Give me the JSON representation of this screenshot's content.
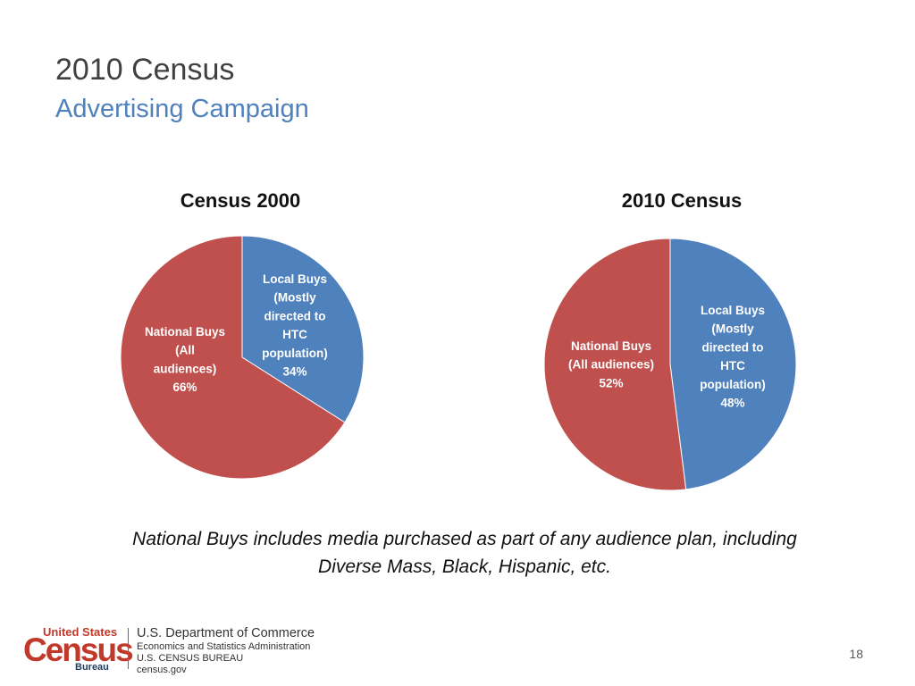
{
  "slide": {
    "title": "2010 Census",
    "subtitle": "Advertising Campaign",
    "footnote_line1": "National Buys includes media purchased as part of any audience plan, including",
    "footnote_line2": "Diverse Mass, Black, Hispanic, etc.",
    "page_number": "18"
  },
  "footer": {
    "logo_top": "United States",
    "logo_main": "Census",
    "logo_bottom": "Bureau",
    "dept_line1": "U.S. Department of Commerce",
    "dept_line2": "Economics and Statistics Administration",
    "dept_line3": "U.S. CENSUS BUREAU",
    "dept_line4": "census.gov"
  },
  "colors": {
    "local_buys": "#4f81bd",
    "national_buys": "#c0504d",
    "subtitle": "#4f81bd"
  },
  "chart_data": [
    {
      "type": "pie",
      "title": "Census 2000",
      "slices": [
        {
          "name": "Local Buys (Mostly directed to HTC population)",
          "value": 34,
          "label_lines": [
            "Local Buys",
            "(Mostly",
            "directed to",
            "HTC",
            "population)",
            "34%"
          ],
          "color": "#4f81bd"
        },
        {
          "name": "National Buys (All audiences)",
          "value": 66,
          "label_lines": [
            "National Buys",
            "(All",
            "audiences)",
            "66%"
          ],
          "color": "#c0504d"
        }
      ]
    },
    {
      "type": "pie",
      "title": "2010 Census",
      "slices": [
        {
          "name": "Local Buys (Mostly directed to HTC population)",
          "value": 48,
          "label_lines": [
            "Local Buys",
            "(Mostly",
            "directed to",
            "HTC",
            "population)",
            "48%"
          ],
          "color": "#4f81bd"
        },
        {
          "name": "National Buys (All audiences)",
          "value": 52,
          "label_lines": [
            "National Buys",
            "(All audiences)",
            "52%"
          ],
          "color": "#c0504d"
        }
      ]
    }
  ]
}
